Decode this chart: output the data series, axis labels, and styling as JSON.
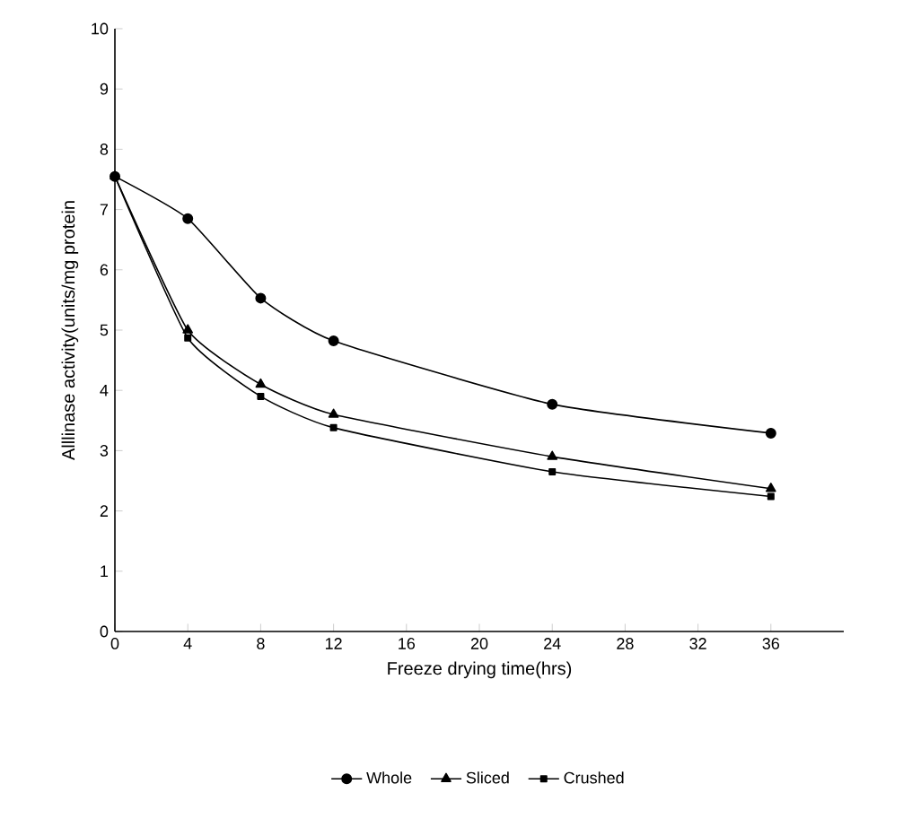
{
  "chart_data": {
    "type": "line",
    "xlabel": "Freeze drying time(hrs)",
    "ylabel": "Alllinase activity(units/mg protein",
    "x": [
      0,
      4,
      8,
      12,
      24,
      36
    ],
    "series": [
      {
        "name": "Whole",
        "color": "#000000",
        "marker": "circle",
        "values": [
          7.55,
          6.85,
          5.53,
          4.82,
          3.77,
          3.29
        ]
      },
      {
        "name": "Sliced",
        "color": "#000000",
        "marker": "triangle",
        "values": [
          7.55,
          5.0,
          4.1,
          3.6,
          2.9,
          2.37
        ]
      },
      {
        "name": "Crushed",
        "color": "#000000",
        "marker": "square",
        "values": [
          7.55,
          4.87,
          3.9,
          3.38,
          2.65,
          2.24
        ]
      }
    ],
    "xlim": [
      0,
      40
    ],
    "xticks": [
      0,
      4,
      8,
      12,
      16,
      20,
      24,
      28,
      32,
      36
    ],
    "ylim": [
      0,
      10
    ],
    "yticks": [
      0,
      1,
      2,
      3,
      4,
      5,
      6,
      7,
      8,
      9,
      10
    ],
    "legend": "bottom",
    "grid": false,
    "line_style": "solid"
  }
}
